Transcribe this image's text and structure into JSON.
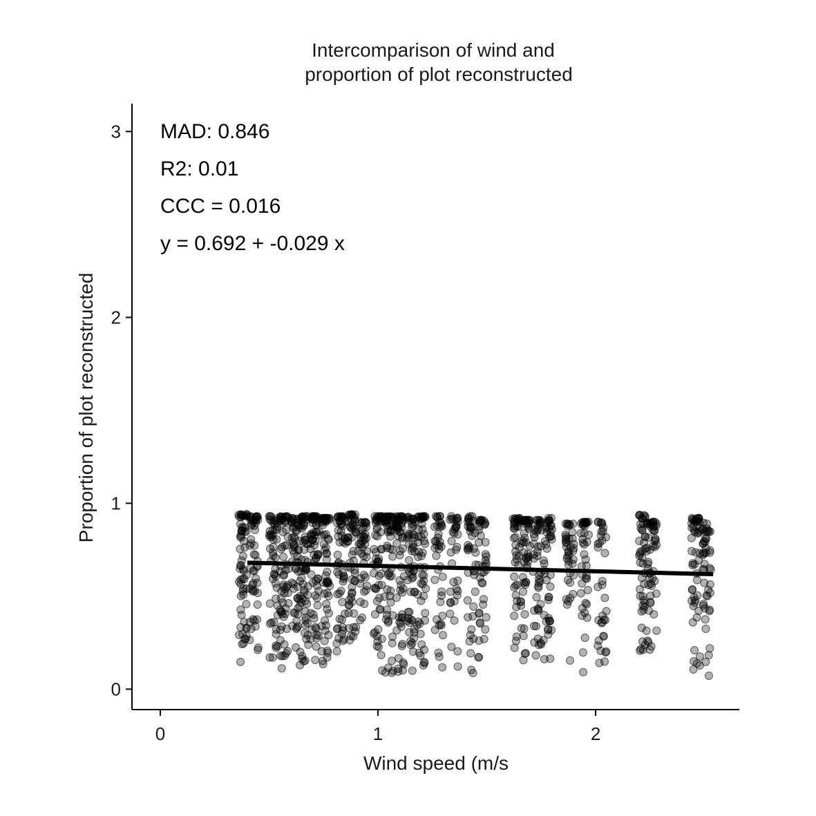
{
  "chart_data": {
    "type": "scatter",
    "title_lines": [
      "Intercomparison of wind and",
      "proportion of plot reconstructed"
    ],
    "xlabel": "Wind speed (m/s",
    "ylabel": "Proportion of plot reconstructed",
    "xlim": [
      -0.13,
      2.66
    ],
    "ylim": [
      -0.11,
      3.15
    ],
    "x_ticks": [
      0,
      1,
      2
    ],
    "x_tick_labels": [
      "0",
      "1",
      "2"
    ],
    "y_ticks": [
      0,
      1,
      2,
      3
    ],
    "y_tick_labels": [
      "0",
      "1",
      "2",
      "3"
    ],
    "grid": false,
    "legend": "none",
    "point_color": "#000000",
    "point_opacity": 0.3,
    "annotations": [
      "MAD: 0.846",
      "R2: 0.01",
      "CCC =  0.016",
      "y =  0.692 + -0.029 x"
    ],
    "regression": {
      "intercept": 0.692,
      "slope": -0.029,
      "x_range": [
        0.4,
        2.54
      ]
    },
    "point_columns": [
      {
        "x": 0.38,
        "ymin": 0.14,
        "ymax": 0.94,
        "n": 60
      },
      {
        "x": 0.43,
        "ymin": 0.2,
        "ymax": 0.93,
        "n": 50
      },
      {
        "x": 0.52,
        "ymin": 0.16,
        "ymax": 0.93,
        "n": 50
      },
      {
        "x": 0.57,
        "ymin": 0.1,
        "ymax": 0.93,
        "n": 60
      },
      {
        "x": 0.62,
        "ymin": 0.12,
        "ymax": 0.92,
        "n": 50
      },
      {
        "x": 0.66,
        "ymin": 0.12,
        "ymax": 0.93,
        "n": 65
      },
      {
        "x": 0.71,
        "ymin": 0.15,
        "ymax": 0.93,
        "n": 65
      },
      {
        "x": 0.76,
        "ymin": 0.1,
        "ymax": 0.92,
        "n": 60
      },
      {
        "x": 0.83,
        "ymin": 0.12,
        "ymax": 0.93,
        "n": 55
      },
      {
        "x": 0.88,
        "ymin": 0.25,
        "ymax": 0.94,
        "n": 55
      },
      {
        "x": 0.93,
        "ymin": 0.35,
        "ymax": 0.9,
        "n": 40
      },
      {
        "x": 1.0,
        "ymin": 0.1,
        "ymax": 0.93,
        "n": 55
      },
      {
        "x": 1.05,
        "ymin": 0.05,
        "ymax": 0.93,
        "n": 60
      },
      {
        "x": 1.1,
        "ymin": 0.06,
        "ymax": 0.93,
        "n": 60
      },
      {
        "x": 1.15,
        "ymin": 0.06,
        "ymax": 0.93,
        "n": 55
      },
      {
        "x": 1.2,
        "ymin": 0.12,
        "ymax": 0.93,
        "n": 50
      },
      {
        "x": 1.28,
        "ymin": 0.07,
        "ymax": 0.93,
        "n": 40
      },
      {
        "x": 1.35,
        "ymin": 0.1,
        "ymax": 0.93,
        "n": 35
      },
      {
        "x": 1.43,
        "ymin": 0.06,
        "ymax": 0.93,
        "n": 40
      },
      {
        "x": 1.48,
        "ymin": 0.12,
        "ymax": 0.91,
        "n": 40
      },
      {
        "x": 1.64,
        "ymin": 0.2,
        "ymax": 0.92,
        "n": 45
      },
      {
        "x": 1.68,
        "ymin": 0.15,
        "ymax": 0.91,
        "n": 45
      },
      {
        "x": 1.73,
        "ymin": 0.12,
        "ymax": 0.91,
        "n": 45
      },
      {
        "x": 1.78,
        "ymin": 0.15,
        "ymax": 0.92,
        "n": 45
      },
      {
        "x": 1.88,
        "ymin": 0.14,
        "ymax": 0.89,
        "n": 40
      },
      {
        "x": 1.95,
        "ymin": 0.09,
        "ymax": 0.9,
        "n": 40
      },
      {
        "x": 2.03,
        "ymin": 0.1,
        "ymax": 0.9,
        "n": 35
      },
      {
        "x": 2.22,
        "ymin": 0.15,
        "ymax": 0.94,
        "n": 50
      },
      {
        "x": 2.26,
        "ymin": 0.18,
        "ymax": 0.9,
        "n": 45
      },
      {
        "x": 2.46,
        "ymin": 0.06,
        "ymax": 0.92,
        "n": 50
      },
      {
        "x": 2.51,
        "ymin": 0.06,
        "ymax": 0.9,
        "n": 45
      }
    ]
  }
}
